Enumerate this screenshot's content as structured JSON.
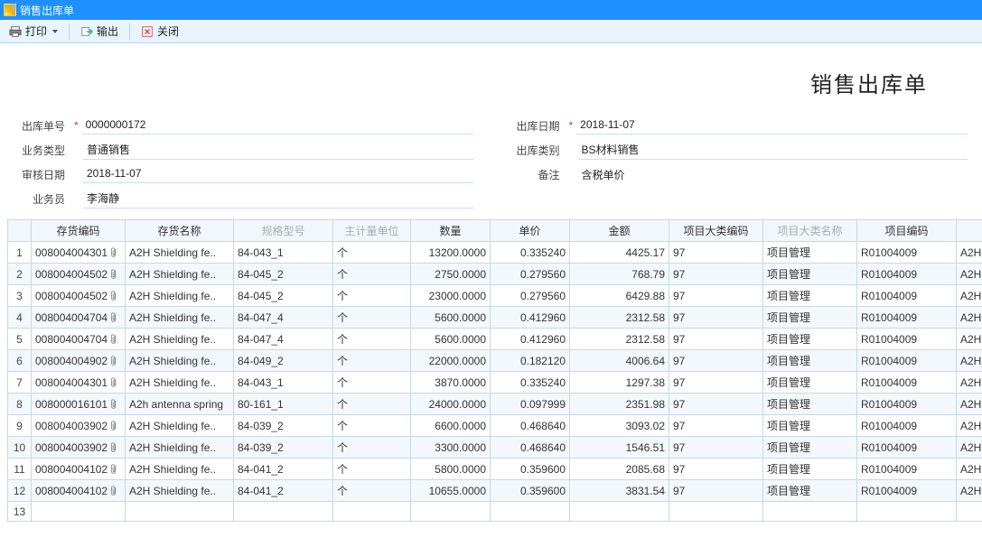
{
  "window": {
    "title": "销售出库单"
  },
  "toolbar": {
    "print": "打印",
    "export": "输出",
    "close": "关闭"
  },
  "doc_title": "销售出库单",
  "form": {
    "left": [
      {
        "label": "出库单号",
        "required": true,
        "value": "0000000172"
      },
      {
        "label": "业务类型",
        "required": false,
        "value": "普通销售"
      },
      {
        "label": "审核日期",
        "required": false,
        "value": "2018-11-07"
      },
      {
        "label": "业务员",
        "required": false,
        "value": "李海静"
      }
    ],
    "right": [
      {
        "label": "出库日期",
        "required": true,
        "value": "2018-11-07"
      },
      {
        "label": "出库类别",
        "required": false,
        "value": "BS材料销售"
      },
      {
        "label": "备注",
        "required": false,
        "value": "含税单价",
        "no_underline": true
      }
    ]
  },
  "grid": {
    "columns": [
      {
        "key": "code",
        "label": "存货编码",
        "dim": false
      },
      {
        "key": "name",
        "label": "存货名称",
        "dim": false
      },
      {
        "key": "spec",
        "label": "规格型号",
        "dim": true
      },
      {
        "key": "uom",
        "label": "主计量单位",
        "dim": true
      },
      {
        "key": "qty",
        "label": "数量",
        "dim": false,
        "num": true
      },
      {
        "key": "price",
        "label": "单价",
        "dim": false,
        "num": true
      },
      {
        "key": "amount",
        "label": "金额",
        "dim": false,
        "num": true
      },
      {
        "key": "catcode",
        "label": "项目大类编码",
        "dim": false
      },
      {
        "key": "catname",
        "label": "项目大类名称",
        "dim": true
      },
      {
        "key": "projcode",
        "label": "项目编码",
        "dim": false
      },
      {
        "key": "extra",
        "label": "",
        "dim": false
      }
    ],
    "rows": [
      {
        "code": "008004004301",
        "name": "A2H Shielding fe..",
        "spec": "84-043_1",
        "uom": "个",
        "qty": "13200.0000",
        "price": "0.335240",
        "amount": "4425.17",
        "catcode": "97",
        "catname": "项目管理",
        "projcode": "R01004009",
        "extra": "A2H"
      },
      {
        "code": "008004004502",
        "name": "A2H Shielding fe..",
        "spec": "84-045_2",
        "uom": "个",
        "qty": "2750.0000",
        "price": "0.279560",
        "amount": "768.79",
        "catcode": "97",
        "catname": "项目管理",
        "projcode": "R01004009",
        "extra": "A2H"
      },
      {
        "code": "008004004502",
        "name": "A2H Shielding fe..",
        "spec": "84-045_2",
        "uom": "个",
        "qty": "23000.0000",
        "price": "0.279560",
        "amount": "6429.88",
        "catcode": "97",
        "catname": "项目管理",
        "projcode": "R01004009",
        "extra": "A2H"
      },
      {
        "code": "008004004704",
        "name": "A2H Shielding fe..",
        "spec": "84-047_4",
        "uom": "个",
        "qty": "5600.0000",
        "price": "0.412960",
        "amount": "2312.58",
        "catcode": "97",
        "catname": "项目管理",
        "projcode": "R01004009",
        "extra": "A2H"
      },
      {
        "code": "008004004704",
        "name": "A2H Shielding fe..",
        "spec": "84-047_4",
        "uom": "个",
        "qty": "5600.0000",
        "price": "0.412960",
        "amount": "2312.58",
        "catcode": "97",
        "catname": "项目管理",
        "projcode": "R01004009",
        "extra": "A2H"
      },
      {
        "code": "008004004902",
        "name": "A2H Shielding fe..",
        "spec": "84-049_2",
        "uom": "个",
        "qty": "22000.0000",
        "price": "0.182120",
        "amount": "4006.64",
        "catcode": "97",
        "catname": "项目管理",
        "projcode": "R01004009",
        "extra": "A2H"
      },
      {
        "code": "008004004301",
        "name": "A2H Shielding fe..",
        "spec": "84-043_1",
        "uom": "个",
        "qty": "3870.0000",
        "price": "0.335240",
        "amount": "1297.38",
        "catcode": "97",
        "catname": "项目管理",
        "projcode": "R01004009",
        "extra": "A2H"
      },
      {
        "code": "008000016101",
        "name": "A2h antenna spring",
        "spec": "80-161_1",
        "uom": "个",
        "qty": "24000.0000",
        "price": "0.097999",
        "amount": "2351.98",
        "catcode": "97",
        "catname": "项目管理",
        "projcode": "R01004009",
        "extra": "A2H"
      },
      {
        "code": "008004003902",
        "name": "A2H Shielding fe..",
        "spec": "84-039_2",
        "uom": "个",
        "qty": "6600.0000",
        "price": "0.468640",
        "amount": "3093.02",
        "catcode": "97",
        "catname": "项目管理",
        "projcode": "R01004009",
        "extra": "A2H"
      },
      {
        "code": "008004003902",
        "name": "A2H Shielding fe..",
        "spec": "84-039_2",
        "uom": "个",
        "qty": "3300.0000",
        "price": "0.468640",
        "amount": "1546.51",
        "catcode": "97",
        "catname": "项目管理",
        "projcode": "R01004009",
        "extra": "A2H"
      },
      {
        "code": "008004004102",
        "name": "A2H Shielding fe..",
        "spec": "84-041_2",
        "uom": "个",
        "qty": "5800.0000",
        "price": "0.359600",
        "amount": "2085.68",
        "catcode": "97",
        "catname": "项目管理",
        "projcode": "R01004009",
        "extra": "A2H"
      },
      {
        "code": "008004004102",
        "name": "A2H Shielding fe..",
        "spec": "84-041_2",
        "uom": "个",
        "qty": "10655.0000",
        "price": "0.359600",
        "amount": "3831.54",
        "catcode": "97",
        "catname": "项目管理",
        "projcode": "R01004009",
        "extra": "A2H"
      }
    ],
    "empty_row_num": "13"
  },
  "colors": {
    "title_bar": "#1e90ff",
    "toolbar_bg": "#e9f4ff",
    "border": "#c9d7e4",
    "row_alt": "#f3f8fd",
    "header_bg": "#f2f7fc"
  }
}
